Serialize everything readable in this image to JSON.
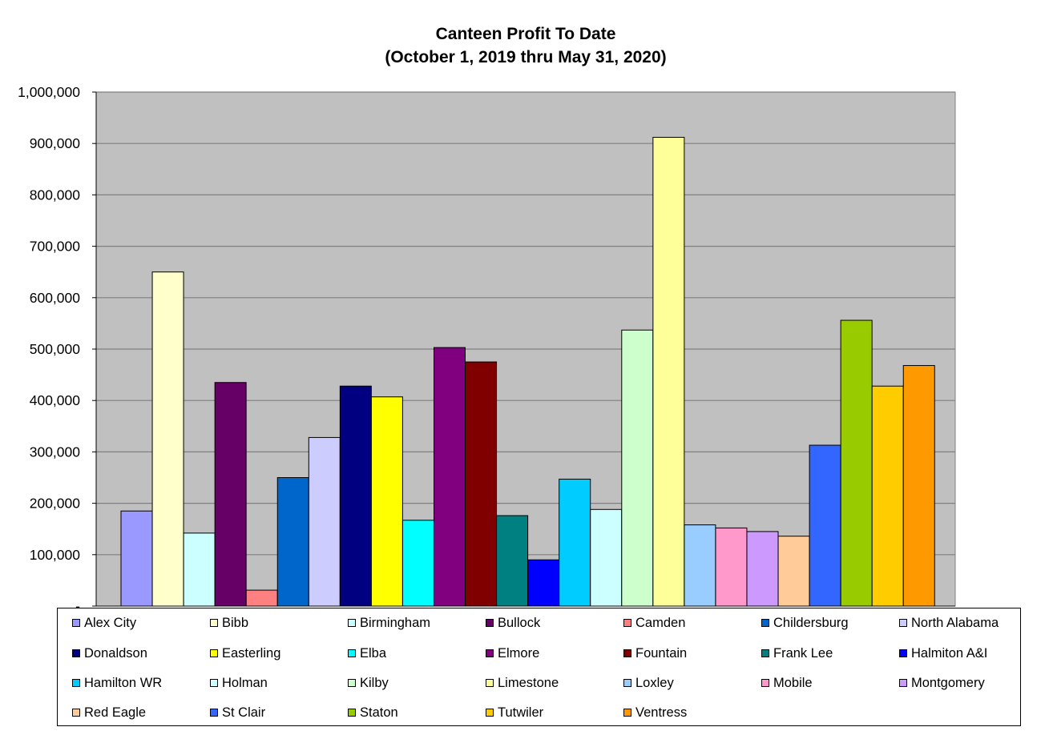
{
  "chart_data": {
    "type": "bar",
    "title": "Canteen Profit To Date",
    "subtitle": "(October 1, 2019 thru May 31, 2020)",
    "xlabel": "",
    "ylabel": "",
    "ylim": [
      0,
      1000000
    ],
    "yticks": [
      0,
      100000,
      200000,
      300000,
      400000,
      500000,
      600000,
      700000,
      800000,
      900000,
      1000000
    ],
    "ytick_labels": [
      "-",
      "100,000",
      "200,000",
      "300,000",
      "400,000",
      "500,000",
      "600,000",
      "700,000",
      "800,000",
      "900,000",
      "1,000,000"
    ],
    "grid": true,
    "plot_background": "#c0c0c0",
    "legend_position": "bottom",
    "series": [
      {
        "name": "Alex City",
        "value": 185000,
        "color": "#9999ff"
      },
      {
        "name": "Bibb",
        "value": 650000,
        "color": "#ffffcc"
      },
      {
        "name": "Birmingham",
        "value": 142000,
        "color": "#ccffff"
      },
      {
        "name": "Bullock",
        "value": 435000,
        "color": "#660066"
      },
      {
        "name": "Camden",
        "value": 31000,
        "color": "#ff8080"
      },
      {
        "name": "Childersburg",
        "value": 250000,
        "color": "#0066cc"
      },
      {
        "name": "North Alabama",
        "value": 328000,
        "color": "#ccccff"
      },
      {
        "name": "Donaldson",
        "value": 428000,
        "color": "#000080"
      },
      {
        "name": "Easterling",
        "value": 407000,
        "color": "#ffff00"
      },
      {
        "name": "Elba",
        "value": 167000,
        "color": "#00ffff"
      },
      {
        "name": "Elmore",
        "value": 503000,
        "color": "#800080"
      },
      {
        "name": "Fountain",
        "value": 475000,
        "color": "#800000"
      },
      {
        "name": "Frank Lee",
        "value": 176000,
        "color": "#008080"
      },
      {
        "name": "Halmiton A&I",
        "value": 90000,
        "color": "#0000ff"
      },
      {
        "name": "Hamilton WR",
        "value": 247000,
        "color": "#00ccff"
      },
      {
        "name": "Holman",
        "value": 188000,
        "color": "#ccffff"
      },
      {
        "name": "Kilby",
        "value": 537000,
        "color": "#ccffcc"
      },
      {
        "name": "Limestone",
        "value": 912000,
        "color": "#ffff99"
      },
      {
        "name": "Loxley",
        "value": 158000,
        "color": "#99ccff"
      },
      {
        "name": "Mobile",
        "value": 152000,
        "color": "#ff99cc"
      },
      {
        "name": "Montgomery",
        "value": 145000,
        "color": "#cc99ff"
      },
      {
        "name": "Red Eagle",
        "value": 136000,
        "color": "#ffcc99"
      },
      {
        "name": "St Clair",
        "value": 313000,
        "color": "#3366ff"
      },
      {
        "name": "Staton",
        "value": 556000,
        "color": "#99cc00"
      },
      {
        "name": "Tutwiler",
        "value": 428000,
        "color": "#ffcc00"
      },
      {
        "name": "Ventress",
        "value": 468000,
        "color": "#ff9900"
      }
    ]
  }
}
